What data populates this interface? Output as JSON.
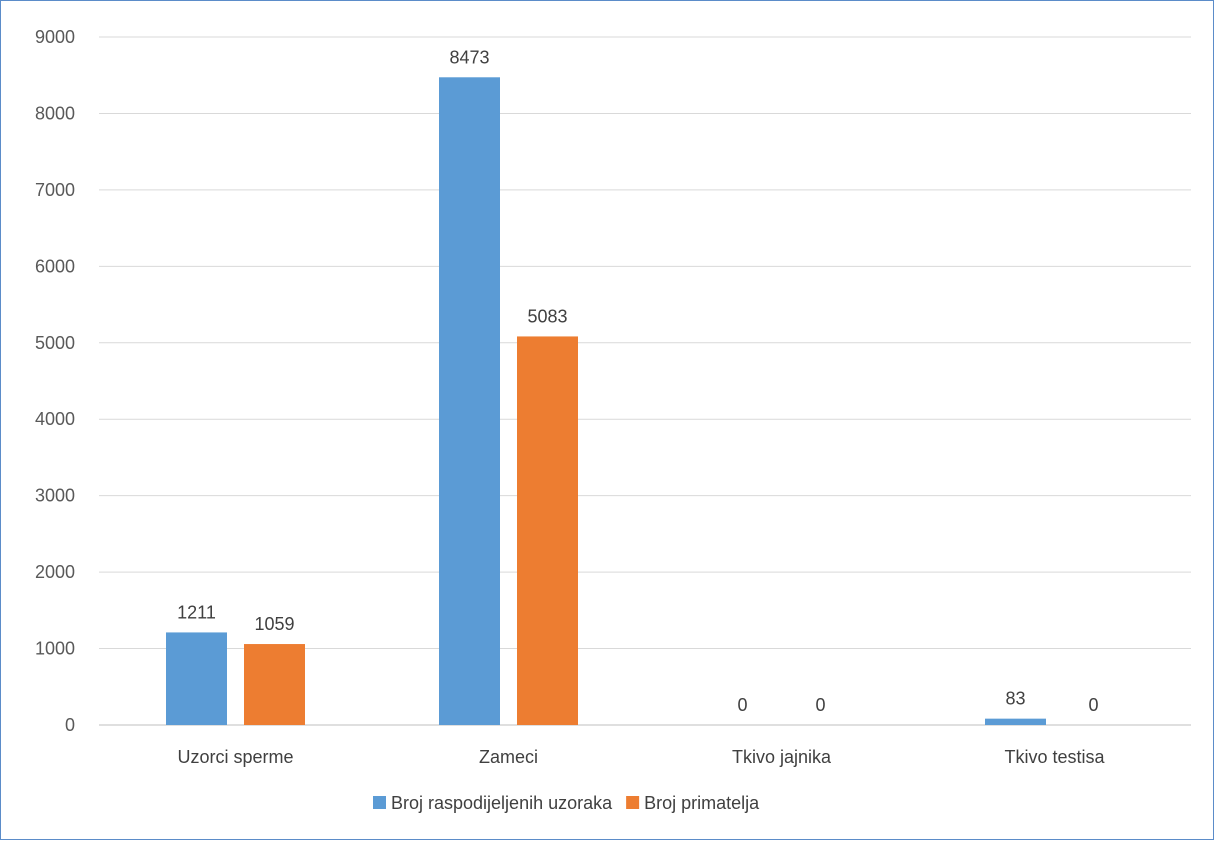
{
  "chart_data": {
    "type": "bar",
    "categories": [
      "Uzorci sperme",
      "Zameci",
      "Tkivo jajnika",
      "Tkivo testisa"
    ],
    "series": [
      {
        "name": "Broj raspodijeljenih uzoraka",
        "values": [
          1211,
          8473,
          0,
          83
        ],
        "color": "#5b9bd5"
      },
      {
        "name": "Broj primatelja",
        "values": [
          1059,
          5083,
          0,
          0
        ],
        "color": "#ed7d31"
      }
    ],
    "ylim": [
      0,
      9000
    ],
    "yticks": [
      0,
      1000,
      2000,
      3000,
      4000,
      5000,
      6000,
      7000,
      8000,
      9000
    ],
    "grid": true,
    "legend_position": "bottom",
    "data_labels": true,
    "title": "",
    "xlabel": "",
    "ylabel": ""
  }
}
